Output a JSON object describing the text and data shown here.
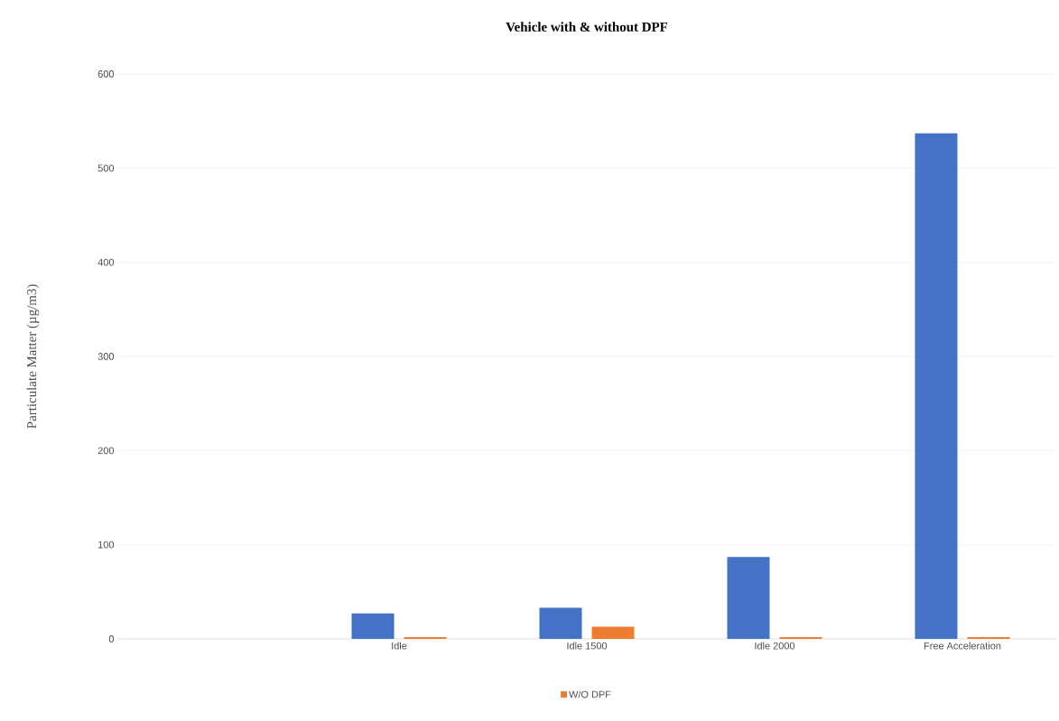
{
  "chart_data": {
    "type": "bar",
    "title": "Vehicle with & without DPF",
    "ylabel": "Particulate Matter (µg/m3)",
    "categories": [
      null,
      "Idle",
      "Idle 1500",
      "Idle 2000",
      "Free Acceleration"
    ],
    "series": [
      {
        "color": "#4472c4",
        "values": [
          null,
          27,
          33,
          87,
          537
        ]
      },
      {
        "name": "W/O DPF",
        "color": "#ed7d31",
        "values": [
          null,
          2,
          13,
          2,
          2
        ]
      }
    ],
    "ylim": [
      0,
      600
    ],
    "yticks": [
      0,
      100,
      200,
      300,
      400,
      500,
      600
    ],
    "grid": "y",
    "legend": "bottom"
  }
}
